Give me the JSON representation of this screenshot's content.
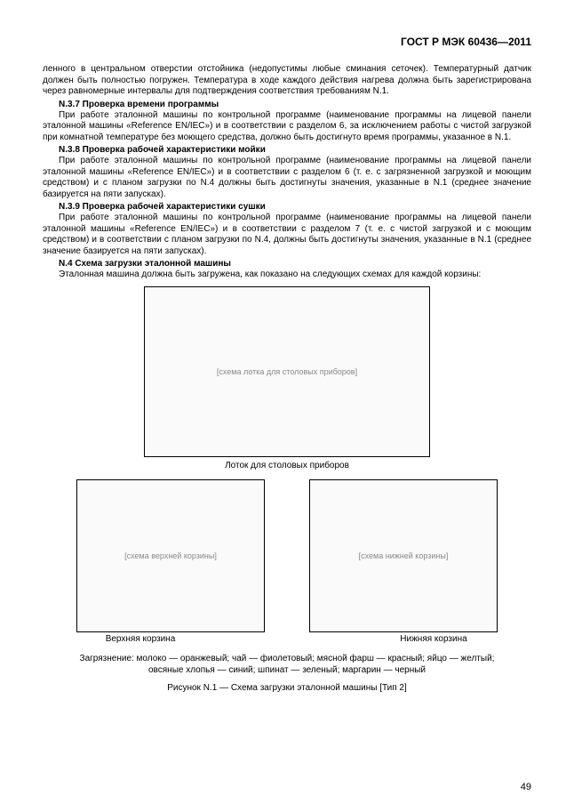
{
  "header": {
    "doc_code": "ГОСТ Р МЭК 60436—2011"
  },
  "intro_paragraph": "ленного в центральном отверстии отстойника (недопустимы любые сминания сеточек). Температурный датчик должен быть полностью погружен. Температура в ходе каждого действия нагрева должна быть зарегистрирована через равномерные интервалы для подтверждения соответствия требованиям N.1.",
  "s37": {
    "heading": "N.3.7 Проверка времени программы",
    "body": "При работе эталонной машины по контрольной программе (наименование программы на лицевой панели эталонной машины «Reference EN/IEC») и в соответствии с разделом 6, за исключением работы с чистой загрузкой при комнатной температуре без моющего средства, должно быть достигнуто время программы, указанное в N.1."
  },
  "s38": {
    "heading": "N.3.8 Проверка рабочей характеристики мойки",
    "body": "При работе эталонной машины по контрольной программе (наименование программы на лицевой панели эталонной машины «Reference EN/IEC») и в соответствии с разделом 6 (т. е. с загрязненной загрузкой и моющим средством) и с планом загрузки по N.4 должны быть достигнуты значения, указанные в N.1 (среднее значение базируется на пяти запусках)."
  },
  "s39": {
    "heading": "N.3.9 Проверка рабочей характеристики сушки",
    "body": "При работе эталонной машины по контрольной программе (наименование программы на лицевой панели эталонной машины «Reference EN/IEC») и в соответствии с разделом 7 (т. е. с чистой загрузкой и с моющим средством) и в соответствии с планом загрузки по N.4, должны быть достигнуты значения, указанные в N.1 (среднее значение базируется на пяти запусках)."
  },
  "s4": {
    "heading": "N.4 Схема загрузки эталонной машины",
    "body": "Эталонная машина должна быть загружена, как показано на следующих схемах для каждой корзины:"
  },
  "figures": {
    "tray_caption": "Лоток для столовых приборов",
    "upper_caption": "Верхняя корзина",
    "lower_caption": "Нижняя корзина",
    "legend_line1": "Загрязнение:  молоко — оранжевый;  чай — фиолетовый;  мясной фарш — красный;  яйцо — желтый;",
    "legend_line2": "овсяные хлопья — синий;  шпинат — зеленый;  маргарин — черный",
    "title": "Рисунок N.1 — Схема загрузки эталонной машины [Тип 2]"
  },
  "page_number": "49",
  "placeholder": {
    "tray": "[схема лотка для столовых приборов]",
    "upper": "[схема верхней корзины]",
    "lower": "[схема нижней корзины]"
  }
}
